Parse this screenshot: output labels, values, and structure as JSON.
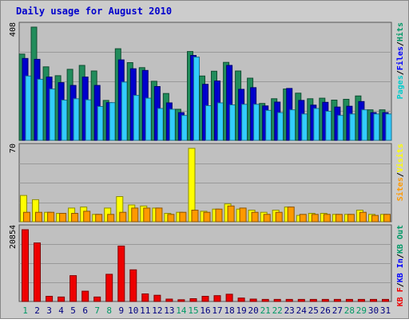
{
  "chart_data": {
    "type": "bar",
    "title": "Daily usage for August 2010",
    "categories": [
      "1",
      "2",
      "3",
      "4",
      "5",
      "6",
      "7",
      "8",
      "9",
      "10",
      "11",
      "12",
      "13",
      "14",
      "15",
      "16",
      "17",
      "18",
      "19",
      "20",
      "21",
      "22",
      "23",
      "24",
      "25",
      "26",
      "27",
      "28",
      "29",
      "30",
      "31"
    ],
    "weekend_days": [
      "1",
      "7",
      "8",
      "14",
      "15",
      "21",
      "22",
      "28",
      "29"
    ],
    "panels": [
      {
        "id": "hits",
        "max_label": "408",
        "ylim": [
          0,
          408
        ],
        "legend": [
          "Pages",
          "/",
          "Files",
          "/",
          "Hits"
        ],
        "series": [
          {
            "name": "Hits",
            "color": "#218c5b",
            "values": [
              311,
              408,
              265,
              233,
              256,
              270,
              250,
              144,
              330,
              280,
              262,
              213,
              169,
              112,
              320,
              232,
              249,
              281,
              250,
              224,
              133,
              150,
              185,
              170,
              150,
              152,
              145,
              148,
              160,
              110,
              110
            ]
          },
          {
            "name": "Files",
            "color": "#0000cc",
            "values": [
              295,
              292,
              228,
              208,
              198,
              228,
              198,
              136,
              290,
              258,
              252,
              194,
              135,
              100,
              306,
              202,
              214,
              270,
              184,
              190,
              124,
              138,
              187,
              144,
              127,
              137,
              120,
              123,
              140,
              100,
              100
            ]
          },
          {
            "name": "Pages",
            "color": "#33ccff",
            "values": [
              232,
              220,
              185,
              145,
              150,
              146,
              122,
              136,
              210,
              162,
              152,
              115,
              112,
              90,
              300,
              125,
              135,
              128,
              130,
              130,
              108,
              100,
              110,
              95,
              115,
              105,
              90,
              95,
              110,
              95,
              95
            ]
          }
        ]
      },
      {
        "id": "visits",
        "max_label": "70",
        "ylim": [
          0,
          70
        ],
        "legend": [
          "Sites",
          "/",
          "Visits"
        ],
        "series": [
          {
            "name": "Visits",
            "color": "#ffff00",
            "values": [
              25,
              21,
              9,
              8,
              13,
              14,
              7,
              13,
              24,
              16,
              15,
              13,
              8,
              9,
              70,
              10,
              12,
              17,
              12,
              11,
              9,
              11,
              14,
              6,
              8,
              8,
              7,
              7,
              11,
              7,
              7
            ]
          },
          {
            "name": "Sites",
            "color": "#ff9900",
            "values": [
              9,
              9,
              9,
              8,
              8,
              10,
              7,
              7,
              9,
              13,
              13,
              13,
              7,
              9,
              11,
              9,
              12,
              15,
              13,
              9,
              7,
              9,
              14,
              7,
              7,
              7,
              7,
              7,
              9,
              6,
              7
            ]
          }
        ]
      },
      {
        "id": "kb",
        "max_label": "20854",
        "ylim": [
          0,
          20854
        ],
        "legend": [
          "KB F",
          "/",
          "KB In",
          "/",
          "KB Out"
        ],
        "series": [
          {
            "name": "KB F",
            "color": "#ee0000",
            "values": [
              20854,
              17000,
              1500,
              1300,
              7500,
              3000,
              1300,
              7900,
              16100,
              9200,
              2200,
              1800,
              700,
              500,
              800,
              1500,
              1700,
              2100,
              1000,
              700,
              600,
              600,
              600,
              600,
              600,
              600,
              600,
              600,
              600,
              600,
              600
            ]
          }
        ]
      }
    ]
  }
}
